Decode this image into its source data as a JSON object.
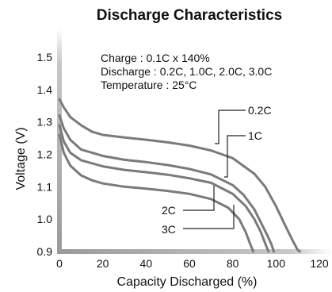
{
  "chart_data": {
    "type": "line",
    "title": "Discharge Characteristics",
    "xlabel": "Capacity Discharged (%)",
    "ylabel": "Voltage (V)",
    "xlim": [
      0,
      120
    ],
    "ylim": [
      0.9,
      1.5
    ],
    "x_ticks": [
      "0",
      "20",
      "40",
      "60",
      "80",
      "100",
      "120"
    ],
    "y_ticks": [
      "0.9",
      "1.0",
      "1.1",
      "1.2",
      "1.3",
      "1.4",
      "1.5"
    ],
    "grid": false,
    "annotations": [
      "Charge : 0.1C x 140%",
      "Discharge : 0.2C, 1.0C, 2.0C, 3.0C",
      "Temperature : 25°C"
    ],
    "series": [
      {
        "name": "0.2C",
        "x": [
          0,
          2,
          5,
          10,
          15,
          20,
          30,
          40,
          50,
          60,
          70,
          80,
          90,
          95,
          100,
          105,
          108,
          110,
          111
        ],
        "y": [
          1.37,
          1.345,
          1.315,
          1.29,
          1.27,
          1.26,
          1.252,
          1.245,
          1.237,
          1.227,
          1.212,
          1.188,
          1.14,
          1.1,
          1.04,
          0.97,
          0.93,
          0.905,
          0.9
        ]
      },
      {
        "name": "1C",
        "x": [
          0,
          2,
          5,
          10,
          20,
          30,
          40,
          50,
          60,
          70,
          80,
          85,
          90,
          93,
          96,
          98,
          99
        ],
        "y": [
          1.32,
          1.28,
          1.245,
          1.215,
          1.195,
          1.183,
          1.176,
          1.167,
          1.155,
          1.138,
          1.105,
          1.075,
          1.03,
          0.99,
          0.95,
          0.92,
          0.9
        ]
      },
      {
        "name": "2C",
        "x": [
          0,
          2,
          5,
          10,
          20,
          30,
          40,
          50,
          60,
          70,
          80,
          86,
          90,
          93,
          95,
          96.5
        ],
        "y": [
          1.29,
          1.24,
          1.205,
          1.182,
          1.163,
          1.152,
          1.145,
          1.137,
          1.126,
          1.112,
          1.078,
          1.04,
          1.0,
          0.96,
          0.925,
          0.9
        ]
      },
      {
        "name": "3C",
        "x": [
          0,
          2,
          5,
          10,
          15,
          20,
          30,
          40,
          50,
          60,
          70,
          78,
          83,
          86,
          88,
          89.5
        ],
        "y": [
          1.26,
          1.205,
          1.165,
          1.135,
          1.12,
          1.11,
          1.1,
          1.094,
          1.087,
          1.078,
          1.062,
          1.035,
          1.0,
          0.96,
          0.925,
          0.9
        ]
      }
    ]
  }
}
